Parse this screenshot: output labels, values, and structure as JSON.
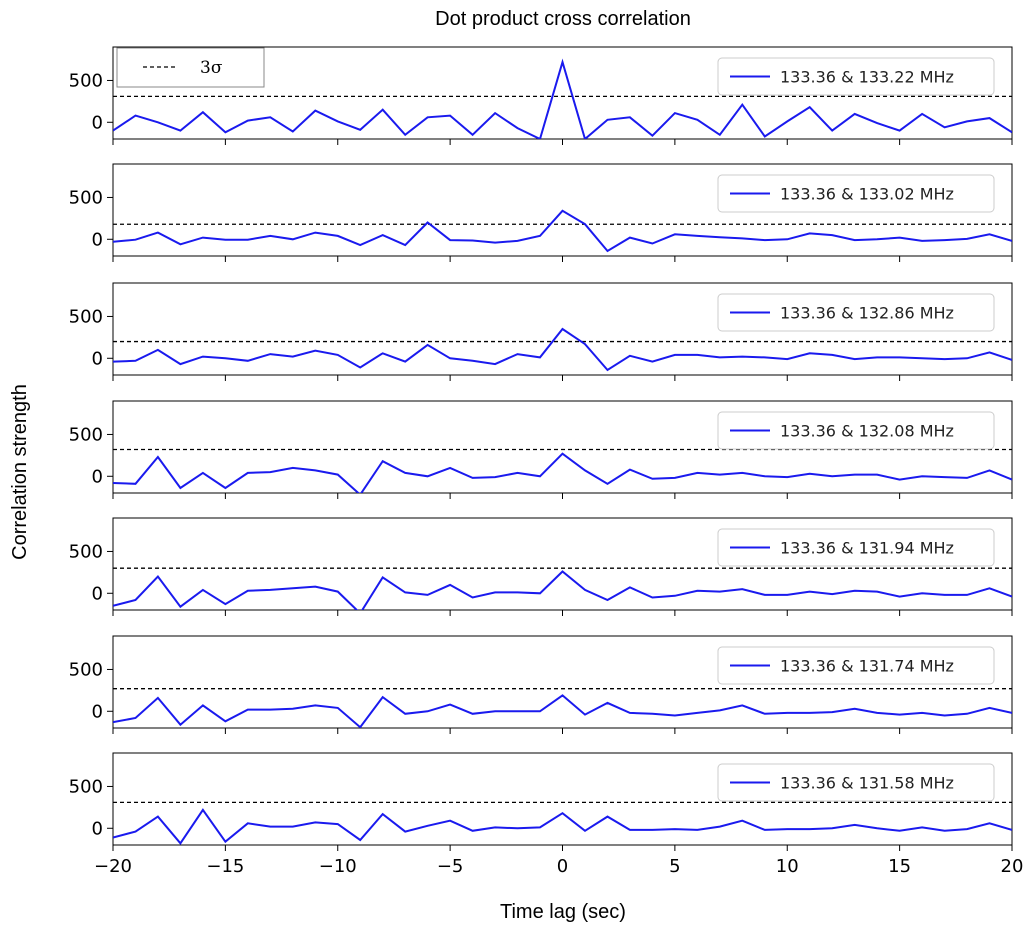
{
  "chart_data": {
    "type": "line",
    "title": "Dot product cross correlation",
    "xlabel": "Time lag (sec)",
    "ylabel": "Correlation strength",
    "xlim": [
      -20,
      20
    ],
    "ylim": [
      -200,
      900
    ],
    "xticks": [
      -20,
      -15,
      -10,
      -5,
      0,
      5,
      10,
      15,
      20
    ],
    "yticks": [
      0,
      500
    ],
    "grid": false,
    "line_color": "#1a1aee",
    "threshold_color": "#000000",
    "threshold_legend": "3σ",
    "threshold_legend_placement": "top-left",
    "series_legend_placement": "top-right",
    "x": [
      -20,
      -19,
      -18,
      -17,
      -16,
      -15,
      -14,
      -13,
      -12,
      -11,
      -10,
      -9,
      -8,
      -7,
      -6,
      -5,
      -4,
      -3,
      -2,
      -1,
      0,
      1,
      2,
      3,
      4,
      5,
      6,
      7,
      8,
      9,
      10,
      11,
      12,
      13,
      14,
      15,
      16,
      17,
      18,
      19,
      20
    ],
    "panels": [
      {
        "name": "133.36 & 133.22 MHz",
        "threshold": 310,
        "values": [
          -100,
          80,
          0,
          -100,
          120,
          -120,
          20,
          60,
          -110,
          140,
          10,
          -90,
          150,
          -150,
          60,
          80,
          -150,
          110,
          -70,
          -200,
          720,
          -200,
          30,
          60,
          -160,
          110,
          30,
          -150,
          210,
          -170,
          10,
          180,
          -100,
          100,
          -10,
          -100,
          100,
          -60,
          10,
          50,
          -120
        ]
      },
      {
        "name": "133.36 & 133.02 MHz",
        "threshold": 180,
        "values": [
          -30,
          -5,
          80,
          -60,
          20,
          -5,
          -5,
          40,
          0,
          80,
          40,
          -70,
          50,
          -70,
          200,
          -10,
          -15,
          -40,
          -20,
          40,
          340,
          180,
          -140,
          20,
          -50,
          60,
          40,
          25,
          10,
          -10,
          0,
          70,
          50,
          -10,
          0,
          20,
          -20,
          -10,
          5,
          60,
          -20
        ]
      },
      {
        "name": "133.36 & 132.86 MHz",
        "threshold": 200,
        "values": [
          -40,
          -30,
          100,
          -70,
          20,
          0,
          -30,
          50,
          20,
          90,
          40,
          -110,
          60,
          -40,
          160,
          0,
          -30,
          -70,
          50,
          10,
          350,
          170,
          -140,
          30,
          -40,
          40,
          40,
          10,
          20,
          10,
          -10,
          60,
          40,
          -10,
          10,
          10,
          0,
          -10,
          0,
          70,
          -20
        ]
      },
      {
        "name": "133.36 & 132.08 MHz",
        "threshold": 320,
        "values": [
          -80,
          -90,
          230,
          -140,
          40,
          -140,
          40,
          50,
          100,
          70,
          20,
          -220,
          180,
          40,
          0,
          100,
          -20,
          -10,
          40,
          0,
          270,
          70,
          -90,
          80,
          -30,
          -20,
          40,
          20,
          40,
          0,
          -10,
          30,
          0,
          20,
          20,
          -40,
          0,
          -10,
          -20,
          70,
          -40
        ]
      },
      {
        "name": "133.36 & 131.94 MHz",
        "threshold": 300,
        "values": [
          -150,
          -80,
          200,
          -160,
          40,
          -130,
          30,
          40,
          60,
          80,
          20,
          -240,
          190,
          10,
          -20,
          100,
          -50,
          10,
          10,
          0,
          260,
          40,
          -80,
          70,
          -50,
          -30,
          30,
          20,
          50,
          -20,
          -20,
          20,
          -10,
          30,
          20,
          -40,
          0,
          -20,
          -20,
          60,
          -40
        ]
      },
      {
        "name": "133.36 & 131.74 MHz",
        "threshold": 270,
        "values": [
          -130,
          -80,
          160,
          -160,
          70,
          -120,
          20,
          20,
          30,
          70,
          40,
          -190,
          170,
          -30,
          0,
          80,
          -30,
          0,
          0,
          0,
          190,
          -40,
          100,
          -20,
          -30,
          -50,
          -20,
          10,
          70,
          -30,
          -20,
          -20,
          -10,
          30,
          -20,
          -40,
          -20,
          -50,
          -30,
          40,
          -20
        ]
      },
      {
        "name": "133.36 & 131.58 MHz",
        "threshold": 310,
        "values": [
          -110,
          -40,
          140,
          -180,
          220,
          -160,
          60,
          20,
          20,
          70,
          50,
          -140,
          170,
          -40,
          30,
          90,
          -30,
          10,
          0,
          10,
          180,
          -30,
          140,
          -20,
          -20,
          -10,
          -20,
          20,
          90,
          -20,
          -10,
          -10,
          0,
          40,
          0,
          -30,
          10,
          -30,
          -10,
          60,
          -20
        ]
      }
    ]
  }
}
